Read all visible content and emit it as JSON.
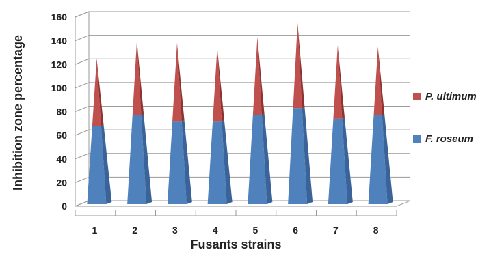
{
  "chart_data": {
    "type": "bar",
    "style": "stacked 3D cones",
    "categories": [
      "1",
      "2",
      "3",
      "4",
      "5",
      "6",
      "7",
      "8"
    ],
    "series": [
      {
        "name": "F. roseum",
        "color": "#4f81bd",
        "side_color": "#3a6399",
        "values": [
          68,
          77,
          72,
          72,
          77,
          83,
          74,
          77
        ]
      },
      {
        "name": "P. ultimum",
        "color": "#c0504d",
        "side_color": "#8f3230",
        "values": [
          57,
          63,
          66,
          62,
          66,
          72,
          62,
          58
        ]
      }
    ],
    "xlabel": "Fusants strains",
    "ylabel": "Inhibition zone percentage",
    "ylim": [
      0,
      160
    ],
    "yticks": [
      "0",
      "20",
      "40",
      "60",
      "80",
      "100",
      "120",
      "140",
      "160"
    ],
    "grid": true,
    "legend_position": "right",
    "legend_order": [
      "P. ultimum",
      "F. roseum"
    ]
  }
}
